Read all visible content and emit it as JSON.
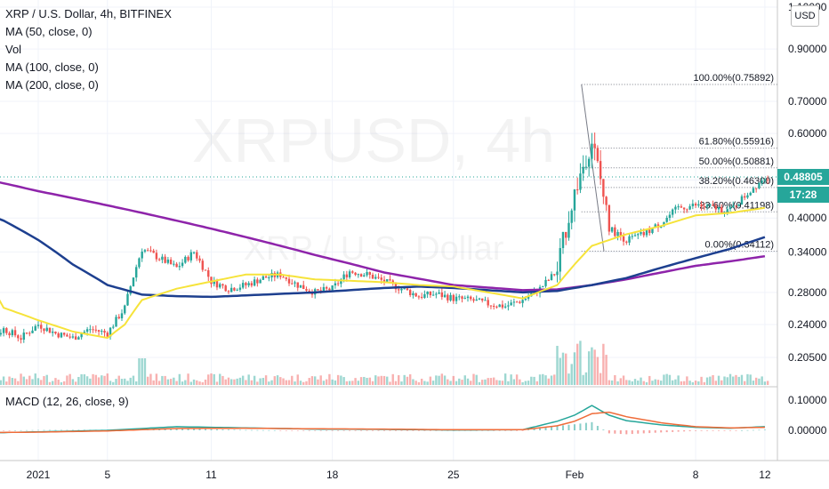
{
  "legend": {
    "title": "XRP / U.S. Dollar, 4h, BITFINEX",
    "ma50": "MA (50, close, 0)",
    "vol": "Vol",
    "ma100": "MA (100, close, 0)",
    "ma200": "MA (200, close, 0)"
  },
  "macd_legend": "MACD (12, 26, close, 9)",
  "watermark": {
    "symbol": "XRPUSD, 4h",
    "name": "XRP / U.S. Dollar"
  },
  "currency_button": "USD",
  "last_price": "0.48805",
  "countdown": "17:28",
  "colors": {
    "up": "#26a69a",
    "down": "#ef5350",
    "ma50": "#f6e33a",
    "ma100": "#1d3f8f",
    "ma200": "#8e24aa",
    "macd": "#26a69a",
    "signal": "#ef6c3a"
  },
  "chart_data": {
    "type": "line",
    "price_axis_ticks": [
      "1.10000",
      "0.90000",
      "0.70000",
      "0.60000",
      "0.48000",
      "0.40000",
      "0.34000",
      "0.28000",
      "0.24000",
      "0.20500"
    ],
    "macd_axis_ticks": [
      "0.10000",
      "0.00000"
    ],
    "x_ticks": [
      "2021",
      "5",
      "11",
      "18",
      "25",
      "Feb",
      "8",
      "12"
    ],
    "fibonacci": [
      {
        "label": "100.00%(0.75892)",
        "value": 0.75892
      },
      {
        "label": "61.80%(0.55916)",
        "value": 0.55916
      },
      {
        "label": "50.00%(0.50881)",
        "value": 0.50881
      },
      {
        "label": "38.20%(0.46300)",
        "value": 0.463
      },
      {
        "label": "23.60%(0.41198)",
        "value": 0.41198
      },
      {
        "label": "0.00%(0.34112)",
        "value": 0.34112
      }
    ],
    "close_series": {
      "name": "",
      "x_days": [
        -4,
        -3,
        -2,
        -1,
        0,
        1,
        2,
        3,
        4,
        5,
        6,
        7,
        8,
        9,
        10,
        11,
        12,
        13,
        14,
        15,
        16,
        17,
        18,
        19,
        20,
        21,
        22,
        23,
        24,
        25,
        26,
        27,
        28,
        29,
        30,
        31,
        32,
        33,
        34,
        35,
        36,
        37,
        38,
        39,
        40,
        41,
        42
      ],
      "values": [
        0.205,
        0.22,
        0.235,
        0.225,
        0.24,
        0.23,
        0.225,
        0.235,
        0.23,
        0.26,
        0.345,
        0.33,
        0.315,
        0.34,
        0.295,
        0.285,
        0.29,
        0.3,
        0.305,
        0.29,
        0.28,
        0.285,
        0.31,
        0.305,
        0.295,
        0.285,
        0.275,
        0.278,
        0.272,
        0.27,
        0.265,
        0.262,
        0.27,
        0.285,
        0.31,
        0.45,
        0.58,
        0.38,
        0.36,
        0.37,
        0.39,
        0.42,
        0.425,
        0.42,
        0.415,
        0.45,
        0.488
      ]
    },
    "ma50": {
      "x_days": [
        -4,
        -2,
        0,
        2,
        4,
        5,
        6,
        8,
        10,
        12,
        14,
        16,
        18,
        20,
        22,
        24,
        26,
        28,
        30,
        31,
        32,
        33,
        34,
        36,
        38,
        40,
        42
      ],
      "values": [
        0.34,
        0.26,
        0.245,
        0.232,
        0.225,
        0.24,
        0.27,
        0.285,
        0.295,
        0.305,
        0.305,
        0.298,
        0.296,
        0.294,
        0.29,
        0.288,
        0.28,
        0.272,
        0.29,
        0.32,
        0.35,
        0.36,
        0.37,
        0.385,
        0.405,
        0.41,
        0.42
      ]
    },
    "ma100": {
      "x_days": [
        -4,
        -2,
        0,
        2,
        4,
        6,
        8,
        10,
        12,
        14,
        16,
        18,
        20,
        22,
        24,
        26,
        28,
        30,
        32,
        34,
        36,
        38,
        40,
        42
      ],
      "values": [
        0.42,
        0.395,
        0.36,
        0.32,
        0.29,
        0.277,
        0.275,
        0.274,
        0.276,
        0.278,
        0.28,
        0.283,
        0.286,
        0.288,
        0.286,
        0.283,
        0.28,
        0.282,
        0.29,
        0.3,
        0.315,
        0.33,
        0.345,
        0.365
      ]
    },
    "ma200": {
      "x_days": [
        -4,
        0,
        4,
        8,
        12,
        16,
        20,
        24,
        28,
        30,
        32,
        34,
        36,
        38,
        40,
        42
      ],
      "values": [
        0.49,
        0.455,
        0.425,
        0.395,
        0.365,
        0.335,
        0.308,
        0.29,
        0.283,
        0.284,
        0.29,
        0.298,
        0.308,
        0.318,
        0.325,
        0.333
      ]
    },
    "macd": {
      "x_days": [
        -4,
        0,
        4,
        8,
        12,
        16,
        20,
        24,
        28,
        30,
        31,
        32,
        33,
        34,
        36,
        38,
        40,
        42
      ],
      "macd_values": [
        -0.01,
        -0.005,
        0.0,
        0.012,
        0.008,
        0.004,
        0.003,
        0.001,
        0.002,
        0.03,
        0.05,
        0.082,
        0.05,
        0.032,
        0.018,
        0.01,
        0.007,
        0.012
      ],
      "signal_values": [
        -0.008,
        -0.006,
        -0.002,
        0.006,
        0.007,
        0.005,
        0.004,
        0.002,
        0.002,
        0.015,
        0.03,
        0.055,
        0.06,
        0.045,
        0.025,
        0.012,
        0.008,
        0.01
      ]
    },
    "grid": true,
    "legend_placement": "top-left"
  }
}
